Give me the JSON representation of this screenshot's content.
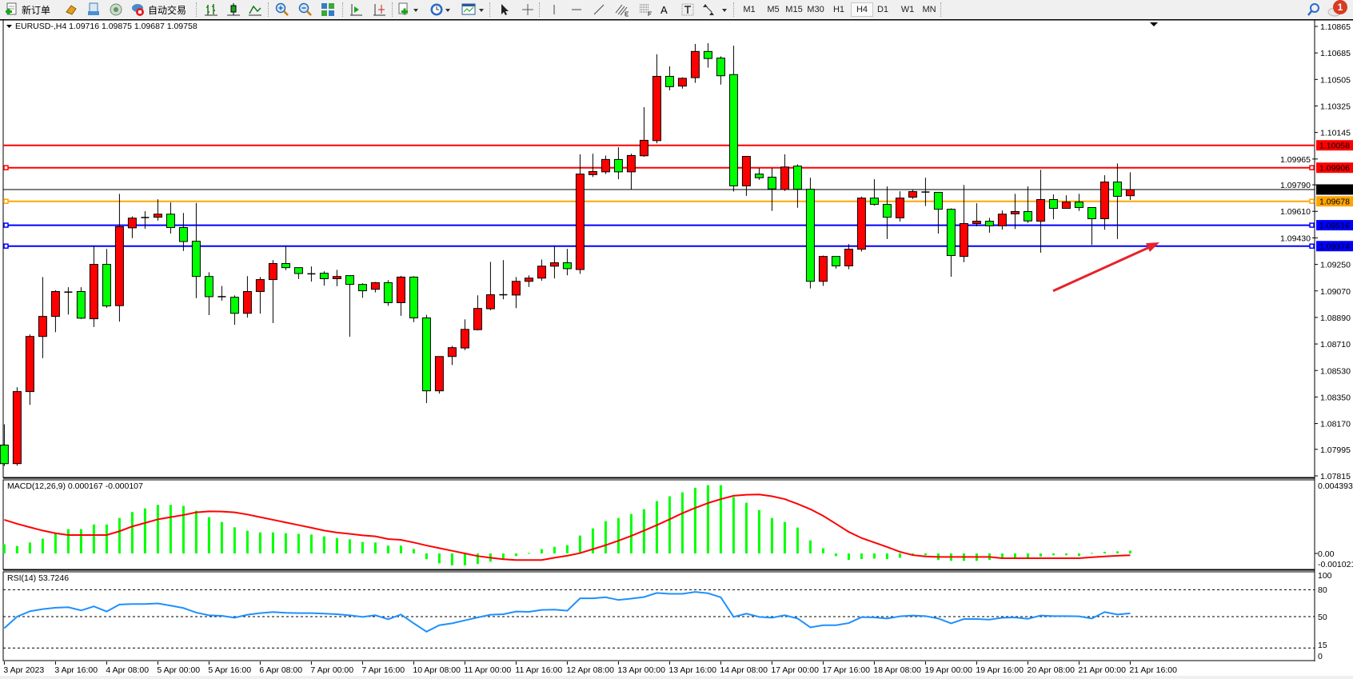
{
  "toolbar": {
    "new_order_label": "新订单",
    "auto_trading_label": "自动交易",
    "icons": [
      "new-order-icon",
      "market-watch-icon",
      "navigator-icon",
      "signals-icon",
      "auto-trading-icon",
      "bar-chart-icon",
      "candlestick-icon",
      "line-chart-icon",
      "zoom-in-icon",
      "zoom-out-icon",
      "tile-windows-icon",
      "chart-shift-icon",
      "auto-scroll-icon",
      "indicators-icon",
      "periods-icon",
      "templates-icon",
      "cursor-icon",
      "crosshair-icon",
      "vertical-line-icon",
      "horizontal-line-icon",
      "trendline-icon",
      "fibo-channel-icon",
      "fibo-fan-icon",
      "text-icon",
      "text-label-icon",
      "arrows-icon",
      "search-icon",
      "notification-icon"
    ],
    "text_tool_label": "A",
    "timeframes": [
      "M1",
      "M5",
      "M15",
      "M30",
      "H1",
      "H4",
      "D1",
      "W1",
      "MN"
    ],
    "selected_timeframe": "H4",
    "notification_count": "1"
  },
  "chart_data": {
    "type": "candlestick",
    "symbol_header": "EURUSD-,H4  1.09716 1.09875 1.09687 1.09758",
    "up_color": "#ff0000",
    "down_color": "#00ff00",
    "ylim": [
      1.07815,
      1.10865
    ],
    "price_axis_labels": [
      "1.10865",
      "1.10685",
      "1.10505",
      "1.10325",
      "1.10145",
      "1.09965",
      "1.09790",
      "1.09610",
      "1.09430",
      "1.09250",
      "1.09070",
      "1.08890",
      "1.08710",
      "1.08530",
      "1.08350",
      "1.08170",
      "1.07995",
      "1.07815"
    ],
    "time_labels": [
      "3 Apr 2023",
      "3 Apr 16:00",
      "4 Apr 08:00",
      "5 Apr 00:00",
      "5 Apr 16:00",
      "6 Apr 08:00",
      "7 Apr 00:00",
      "7 Apr 16:00",
      "10 Apr 08:00",
      "11 Apr 00:00",
      "11 Apr 16:00",
      "12 Apr 08:00",
      "13 Apr 00:00",
      "13 Apr 16:00",
      "14 Apr 08:00",
      "17 Apr 00:00",
      "17 Apr 16:00",
      "18 Apr 08:00",
      "19 Apr 00:00",
      "19 Apr 16:00",
      "20 Apr 08:00",
      "21 Apr 00:00",
      "21 Apr 16:00"
    ],
    "time_label_every_n_bars": 4,
    "ohlc": [
      [
        1.08024,
        1.08165,
        1.07882,
        1.07898
      ],
      [
        1.07898,
        1.08416,
        1.07884,
        1.08387
      ],
      [
        1.08387,
        1.08775,
        1.08297,
        1.08761
      ],
      [
        1.08761,
        1.09164,
        1.08614,
        1.08897
      ],
      [
        1.08897,
        1.09075,
        1.0879,
        1.09066
      ],
      [
        1.09062,
        1.09095,
        1.0891,
        1.09062
      ],
      [
        1.09066,
        1.09095,
        1.08879,
        1.08885
      ],
      [
        1.08881,
        1.09376,
        1.08825,
        1.0925
      ],
      [
        1.0925,
        1.09355,
        1.08955,
        1.08968
      ],
      [
        1.0897,
        1.09729,
        1.08862,
        1.09506
      ],
      [
        1.09498,
        1.09576,
        1.09428,
        1.09564
      ],
      [
        1.09568,
        1.09611,
        1.09492,
        1.09568
      ],
      [
        1.0957,
        1.09692,
        1.09547,
        1.09591
      ],
      [
        1.09591,
        1.09671,
        1.09459,
        1.095
      ],
      [
        1.095,
        1.09599,
        1.09341,
        1.09405
      ],
      [
        1.09407,
        1.09667,
        1.09021,
        1.09168
      ],
      [
        1.09168,
        1.09197,
        1.08906,
        1.09031
      ],
      [
        1.09031,
        1.09104,
        1.09004,
        1.09031
      ],
      [
        1.09027,
        1.0904,
        1.0884,
        1.08918
      ],
      [
        1.08918,
        1.0917,
        1.08889,
        1.09066
      ],
      [
        1.09066,
        1.09164,
        1.08916,
        1.09147
      ],
      [
        1.09147,
        1.09279,
        1.08852,
        1.09256
      ],
      [
        1.09256,
        1.09376,
        1.09211,
        1.09228
      ],
      [
        1.09228,
        1.09228,
        1.09151,
        1.09188
      ],
      [
        1.09186,
        1.09236,
        1.09133,
        1.09186
      ],
      [
        1.0919,
        1.09203,
        1.09106,
        1.09153
      ],
      [
        1.09153,
        1.09213,
        1.09102,
        1.09168
      ],
      [
        1.09174,
        1.09174,
        1.08759,
        1.09114
      ],
      [
        1.09114,
        1.09122,
        1.09023,
        1.09071
      ],
      [
        1.09081,
        1.09131,
        1.0906,
        1.09126
      ],
      [
        1.09126,
        1.09143,
        1.08969,
        1.0899
      ],
      [
        1.0899,
        1.09172,
        1.08901,
        1.09164
      ],
      [
        1.09164,
        1.0917,
        1.08858,
        1.08887
      ],
      [
        1.08887,
        1.08908,
        1.08309,
        1.08392
      ],
      [
        1.08392,
        1.08625,
        1.08373,
        1.08625
      ],
      [
        1.08625,
        1.08697,
        1.08567,
        1.08685
      ],
      [
        1.08683,
        1.08877,
        1.08668,
        1.08809
      ],
      [
        1.08807,
        1.0904,
        1.08802,
        1.08951
      ],
      [
        1.08949,
        1.09267,
        1.08939,
        1.09044
      ],
      [
        1.09044,
        1.09279,
        1.09013,
        1.09044
      ],
      [
        1.09042,
        1.09164,
        1.08953,
        1.09135
      ],
      [
        1.09135,
        1.09176,
        1.09097,
        1.09157
      ],
      [
        1.09157,
        1.09283,
        1.09139,
        1.09238
      ],
      [
        1.09238,
        1.09376,
        1.09155,
        1.09261
      ],
      [
        1.09261,
        1.09355,
        1.09176,
        1.09221
      ],
      [
        1.09215,
        1.09997,
        1.09186,
        1.09863
      ],
      [
        1.09859,
        1.10001,
        1.09843,
        1.0988
      ],
      [
        1.09878,
        1.09989,
        1.09863,
        1.09962
      ],
      [
        1.09962,
        1.10045,
        1.09828,
        1.09878
      ],
      [
        1.09878,
        1.10001,
        1.0976,
        1.09989
      ],
      [
        1.09987,
        1.10317,
        1.0998,
        1.10092
      ],
      [
        1.1009,
        1.10676,
        1.10072,
        1.10526
      ],
      [
        1.10526,
        1.10594,
        1.10431,
        1.10456
      ],
      [
        1.1046,
        1.10519,
        1.10443,
        1.10513
      ],
      [
        1.10517,
        1.10746,
        1.10482,
        1.10695
      ],
      [
        1.10695,
        1.10751,
        1.10585,
        1.10647
      ],
      [
        1.1065,
        1.10662,
        1.1047,
        1.1053
      ],
      [
        1.10538,
        1.10734,
        1.09744,
        1.09783
      ],
      [
        1.09783,
        1.09983,
        1.09715,
        1.09983
      ],
      [
        1.09863,
        1.09904,
        1.09824,
        1.09838
      ],
      [
        1.09842,
        1.09904,
        1.09613,
        1.09762
      ],
      [
        1.09758,
        1.09997,
        1.09748,
        1.09911
      ],
      [
        1.09917,
        1.09929,
        1.09634,
        1.0976
      ],
      [
        1.0976,
        1.09838,
        1.09087,
        1.09135
      ],
      [
        1.09135,
        1.0931,
        1.09104,
        1.09304
      ],
      [
        1.09304,
        1.09304,
        1.09221,
        1.0924
      ],
      [
        1.0924,
        1.09388,
        1.09217,
        1.09353
      ],
      [
        1.09353,
        1.0971,
        1.09337,
        1.097
      ],
      [
        1.097,
        1.09828,
        1.09649,
        1.09657
      ],
      [
        1.09657,
        1.09779,
        1.09422,
        1.0957
      ],
      [
        1.09566,
        1.09746,
        1.09541,
        1.097
      ],
      [
        1.09706,
        1.0976,
        1.09694,
        1.09744
      ],
      [
        1.09741,
        1.09838,
        1.09646,
        1.09741
      ],
      [
        1.09739,
        1.09739,
        1.09459,
        1.09624
      ],
      [
        1.09624,
        1.0963,
        1.09166,
        1.0931
      ],
      [
        1.09304,
        1.09789,
        1.09265,
        1.09527
      ],
      [
        1.09527,
        1.09665,
        1.09508,
        1.09543
      ],
      [
        1.09543,
        1.09566,
        1.09465,
        1.09512
      ],
      [
        1.09512,
        1.09616,
        1.09486,
        1.09591
      ],
      [
        1.09593,
        1.09729,
        1.0949,
        1.09609
      ],
      [
        1.09609,
        1.09779,
        1.09531,
        1.09545
      ],
      [
        1.09543,
        1.09892,
        1.09329,
        1.0969
      ],
      [
        1.0969,
        1.09725,
        1.09556,
        1.0963
      ],
      [
        1.0963,
        1.09719,
        1.0963,
        1.09673
      ],
      [
        1.09673,
        1.09729,
        1.09613,
        1.09636
      ],
      [
        1.09636,
        1.09636,
        1.09382,
        1.0956
      ],
      [
        1.0956,
        1.09855,
        1.09485,
        1.09809
      ],
      [
        1.09809,
        1.09935,
        1.09422,
        1.09712
      ],
      [
        1.09716,
        1.09875,
        1.09687,
        1.09758
      ]
    ],
    "bid_line": {
      "price": "1.09758",
      "color": "#000000"
    },
    "horizontal_lines": [
      {
        "price": "1.10058",
        "color": "#ff0000"
      },
      {
        "price": "1.09906",
        "color": "#ff0000"
      },
      {
        "price": "1.09678",
        "color": "#ffa500"
      },
      {
        "price": "1.09516",
        "color": "#0000ff"
      },
      {
        "price": "1.09374",
        "color": "#0000ff"
      }
    ],
    "arrow": {
      "color": "#e8212a",
      "from": [
        "19 Apr 16:00",
        1.0907
      ],
      "to": [
        "20 Apr 20:00",
        1.094
      ]
    },
    "macd": {
      "label": "MACD(12,26,9) 0.000167 -0.000107",
      "axis_labels": [
        "0.004393",
        "0.00",
        "-0.001021"
      ],
      "ylim": [
        -0.001021,
        0.004393
      ],
      "histogram_color": "#00ff00",
      "signal_color": "#ff0000",
      "histogram": [
        0.00055,
        0.00045,
        0.00066,
        0.00089,
        0.00122,
        0.00147,
        0.00147,
        0.00175,
        0.00175,
        0.00214,
        0.0025,
        0.00272,
        0.00293,
        0.00293,
        0.00287,
        0.00258,
        0.00219,
        0.0019,
        0.00158,
        0.00137,
        0.00127,
        0.00127,
        0.00122,
        0.00118,
        0.00114,
        0.00103,
        0.00093,
        0.00085,
        0.00069,
        0.00066,
        0.00047,
        0.00047,
        0.00027,
        -0.00035,
        -0.0006,
        -0.00072,
        -0.00072,
        -0.00064,
        -0.0005,
        -0.00034,
        -0.00016,
        3e-05,
        0.00026,
        0.0004,
        0.0005,
        0.00108,
        0.00151,
        0.00195,
        0.00214,
        0.00238,
        0.00267,
        0.00316,
        0.00345,
        0.00369,
        0.00396,
        0.00412,
        0.00412,
        0.0034,
        0.00306,
        0.00262,
        0.00214,
        0.0019,
        0.00156,
        0.00079,
        0.00031,
        -0.00016,
        -0.00039,
        -0.00034,
        -0.00031,
        -0.00034,
        -0.00026,
        -0.00011,
        -0.00011,
        -0.0004,
        -0.00045,
        -0.00045,
        -0.00045,
        -0.00039,
        -0.00031,
        -0.00027,
        -0.00026,
        -0.00019,
        -0.00011,
        -0.00011,
        -0.00016,
        3e-05,
        0.0001,
        0.00013,
        0.000167
      ],
      "signal": [
        0.00203,
        0.00179,
        0.00158,
        0.00138,
        0.00122,
        0.00111,
        0.00111,
        0.00111,
        0.00111,
        0.00134,
        0.00163,
        0.00184,
        0.00206,
        0.00219,
        0.00232,
        0.00248,
        0.00254,
        0.00253,
        0.00248,
        0.00235,
        0.00219,
        0.00203,
        0.00187,
        0.00171,
        0.00155,
        0.00138,
        0.00126,
        0.00118,
        0.00109,
        0.00103,
        0.00087,
        0.00082,
        0.00066,
        0.00048,
        0.00032,
        0.00016,
        0,
        -0.00016,
        -0.00026,
        -0.00035,
        -0.0004,
        -0.0004,
        -0.0004,
        -0.00026,
        -0.00014,
        2e-05,
        0.00026,
        0.0005,
        0.00077,
        0.00106,
        0.00138,
        0.00171,
        0.00206,
        0.00243,
        0.00275,
        0.00304,
        0.00328,
        0.00348,
        0.00354,
        0.00356,
        0.00345,
        0.00328,
        0.00299,
        0.00267,
        0.00227,
        0.00179,
        0.0013,
        0.00093,
        0.00066,
        0.00039,
        0.0001,
        -0.0001,
        -0.00018,
        -0.00021,
        -0.00021,
        -0.00021,
        -0.00021,
        -0.00021,
        -0.00029,
        -0.00029,
        -0.00029,
        -0.00029,
        -0.00029,
        -0.00029,
        -0.00029,
        -0.00023,
        -0.00018,
        -0.00014,
        -0.000107
      ]
    },
    "rsi": {
      "label": "RSI(14) 53.7246",
      "axis_labels": [
        "100",
        "80",
        "50",
        "15",
        "0"
      ],
      "levels": [
        80,
        50,
        15
      ],
      "ylim": [
        0,
        100
      ],
      "color": "#1e90ff",
      "values": [
        37.1,
        50,
        56,
        58.4,
        59.9,
        60.5,
        56.9,
        61.4,
        55.7,
        63.5,
        64.1,
        64.1,
        64.7,
        62.3,
        59.6,
        54.5,
        51.5,
        50.9,
        48.8,
        52.1,
        53.9,
        55.1,
        54.2,
        53.9,
        53.9,
        53.3,
        52.7,
        51.5,
        49.7,
        51.5,
        47,
        52.4,
        42.5,
        33.2,
        40.4,
        42.5,
        45.8,
        49.1,
        52.1,
        52.7,
        55.7,
        55.4,
        57.5,
        57.8,
        56.6,
        70.4,
        70.4,
        71.6,
        68.6,
        70.1,
        71.9,
        76.4,
        75.5,
        75.5,
        77.6,
        76.1,
        71.6,
        49.7,
        53.3,
        49.7,
        48.8,
        51.5,
        47.9,
        38,
        40.4,
        40.4,
        42.8,
        49.4,
        49.1,
        47.9,
        50.3,
        51.2,
        50.6,
        47.9,
        42.5,
        47.3,
        47.3,
        46.7,
        48.8,
        49.1,
        47.6,
        51.2,
        50.6,
        50.6,
        50.3,
        47.9,
        55.1,
        52.4,
        53.7246
      ]
    }
  }
}
